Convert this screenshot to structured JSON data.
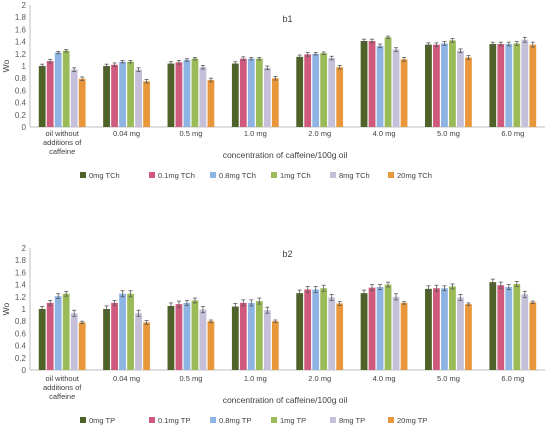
{
  "chart_data": [
    {
      "type": "bar",
      "title": "b1",
      "ylabel": "Wo",
      "xlabel": "concentration of caffeine/100g oil",
      "ylim": [
        0,
        2
      ],
      "yticks": [
        "0",
        "0.2",
        "0.4",
        "0.6",
        "0.8",
        "1",
        "1.2",
        "1.4",
        "1.6",
        "1.8",
        "2"
      ],
      "grid": false,
      "legend_position": "bottom",
      "categories": [
        [
          "oil without",
          "additions of",
          "caffeine"
        ],
        [
          "0.04 mg"
        ],
        [
          "0.5 mg"
        ],
        [
          "1.0 mg"
        ],
        [
          "2.0 mg"
        ],
        [
          "4.0 mg"
        ],
        [
          "5.0 mg"
        ],
        [
          "6.0 mg"
        ]
      ],
      "series": [
        {
          "name": "0mg TCh",
          "color": "#4f6228",
          "values": [
            1.0,
            1.0,
            1.04,
            1.04,
            1.15,
            1.41,
            1.35,
            1.36
          ],
          "errors": [
            0.03,
            0.03,
            0.03,
            0.03,
            0.03,
            0.03,
            0.03,
            0.03
          ]
        },
        {
          "name": "0.1mg TCh",
          "color": "#d05a7e",
          "values": [
            1.08,
            1.02,
            1.06,
            1.12,
            1.19,
            1.41,
            1.35,
            1.36
          ],
          "errors": [
            0.03,
            0.03,
            0.03,
            0.03,
            0.03,
            0.03,
            0.03,
            0.03
          ]
        },
        {
          "name": "0.8mg TCh",
          "color": "#8eb4e3",
          "values": [
            1.22,
            1.07,
            1.1,
            1.12,
            1.2,
            1.33,
            1.37,
            1.36
          ],
          "errors": [
            0.02,
            0.02,
            0.02,
            0.02,
            0.02,
            0.03,
            0.03,
            0.03
          ]
        },
        {
          "name": "1mg TCh",
          "color": "#9bbb59",
          "values": [
            1.25,
            1.07,
            1.12,
            1.12,
            1.21,
            1.47,
            1.42,
            1.37
          ],
          "errors": [
            0.02,
            0.02,
            0.02,
            0.02,
            0.02,
            0.02,
            0.03,
            0.03
          ]
        },
        {
          "name": "8mg TCh",
          "color": "#c5bfd9",
          "values": [
            0.94,
            0.94,
            0.98,
            0.97,
            1.13,
            1.27,
            1.25,
            1.43
          ],
          "errors": [
            0.03,
            0.03,
            0.03,
            0.03,
            0.03,
            0.03,
            0.03,
            0.04
          ]
        },
        {
          "name": "20mg TCh",
          "color": "#e9973b",
          "values": [
            0.79,
            0.75,
            0.77,
            0.8,
            0.98,
            1.11,
            1.14,
            1.35
          ],
          "errors": [
            0.03,
            0.03,
            0.03,
            0.03,
            0.03,
            0.03,
            0.03,
            0.04
          ]
        }
      ]
    },
    {
      "type": "bar",
      "title": "b2",
      "ylabel": "Wo",
      "xlabel": "concentration of caffeine/100g oil",
      "ylim": [
        0,
        2
      ],
      "yticks": [
        "0",
        "0.2",
        "0.4",
        "0.6",
        "0.8",
        "1",
        "1.2",
        "1.4",
        "1.6",
        "1.8",
        "2"
      ],
      "grid": false,
      "legend_position": "bottom",
      "categories": [
        [
          "oil without",
          "additions of",
          "caffeine"
        ],
        [
          "0.04 mg"
        ],
        [
          "0.5 mg"
        ],
        [
          "1.0 mg"
        ],
        [
          "2.0 mg"
        ],
        [
          "4.0 mg"
        ],
        [
          "5.0 mg"
        ],
        [
          "6.0 mg"
        ]
      ],
      "series": [
        {
          "name": "0mg  TP",
          "color": "#4f6228",
          "values": [
            1.0,
            1.0,
            1.05,
            1.04,
            1.26,
            1.26,
            1.33,
            1.44
          ],
          "errors": [
            0.04,
            0.05,
            0.05,
            0.05,
            0.05,
            0.05,
            0.05,
            0.05
          ]
        },
        {
          "name": "0.1mg TP",
          "color": "#d05a7e",
          "values": [
            1.1,
            1.1,
            1.08,
            1.1,
            1.32,
            1.35,
            1.34,
            1.39
          ],
          "errors": [
            0.04,
            0.04,
            0.05,
            0.05,
            0.05,
            0.05,
            0.05,
            0.05
          ]
        },
        {
          "name": "0.8mg TP",
          "color": "#8eb4e3",
          "values": [
            1.21,
            1.25,
            1.1,
            1.1,
            1.32,
            1.36,
            1.34,
            1.36
          ],
          "errors": [
            0.04,
            0.05,
            0.04,
            0.05,
            0.05,
            0.04,
            0.04,
            0.04
          ]
        },
        {
          "name": "1mg  TP",
          "color": "#9bbb59",
          "values": [
            1.25,
            1.25,
            1.14,
            1.13,
            1.34,
            1.4,
            1.37,
            1.41
          ],
          "errors": [
            0.04,
            0.05,
            0.04,
            0.05,
            0.05,
            0.04,
            0.04,
            0.04
          ]
        },
        {
          "name": "8mg  TP",
          "color": "#c5bfd9",
          "values": [
            0.93,
            0.93,
            0.99,
            0.98,
            1.19,
            1.2,
            1.19,
            1.24
          ],
          "errors": [
            0.05,
            0.05,
            0.05,
            0.05,
            0.05,
            0.05,
            0.05,
            0.05
          ]
        },
        {
          "name": "20mg  TP",
          "color": "#e9973b",
          "values": [
            0.78,
            0.78,
            0.8,
            0.8,
            1.09,
            1.1,
            1.08,
            1.11
          ],
          "errors": [
            0.02,
            0.03,
            0.02,
            0.02,
            0.03,
            0.02,
            0.02,
            0.02
          ]
        }
      ]
    }
  ]
}
